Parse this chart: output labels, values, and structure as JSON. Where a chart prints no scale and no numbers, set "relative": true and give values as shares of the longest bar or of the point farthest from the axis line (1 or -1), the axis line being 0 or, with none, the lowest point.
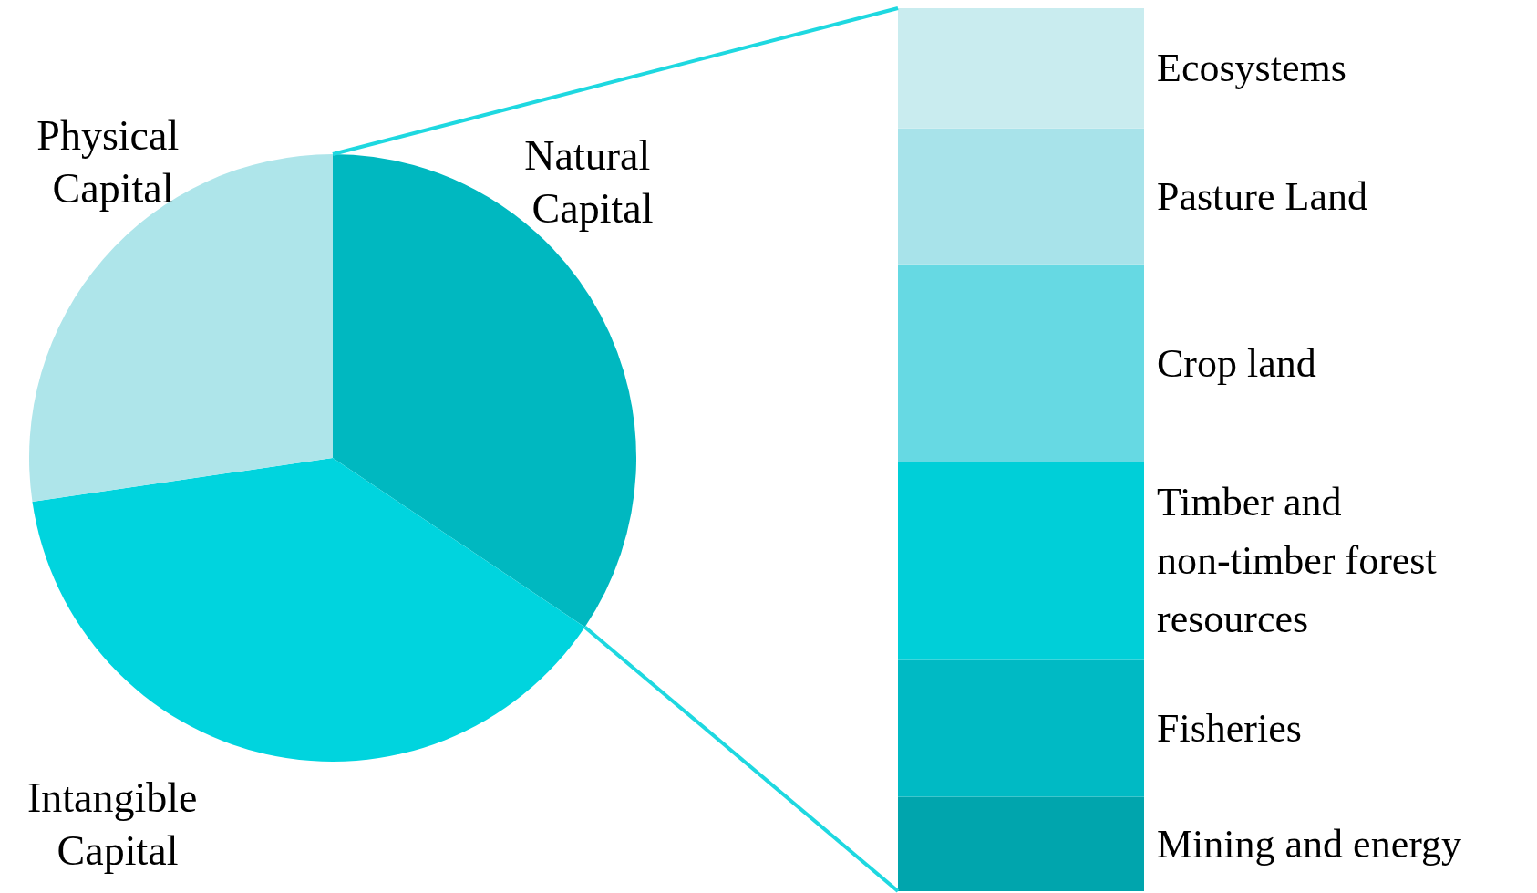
{
  "chart_data": [
    {
      "type": "pie",
      "categories": [
        "Natural Capital",
        "Intangible Capital",
        "Physical Capital"
      ],
      "values": [
        34.4,
        38.3,
        27.3
      ],
      "colors": [
        "#00b8c0",
        "#00d4de",
        "#aee5ea"
      ]
    },
    {
      "type": "bar",
      "stacked": true,
      "relative": true,
      "categories": [
        null
      ],
      "series": [
        {
          "name": "Mining and energy",
          "color": "#00a5ad",
          "values": [
            0.107
          ]
        },
        {
          "name": "Fisheries",
          "color": "#00bac4",
          "values": [
            0.155
          ]
        },
        {
          "name": "Timber and non-timber forest resources",
          "color": "#00cfd8",
          "values": [
            0.224
          ]
        },
        {
          "name": "Crop land",
          "color": "#66d9e3",
          "values": [
            0.224
          ]
        },
        {
          "name": "Pasture Land",
          "color": "#a8e3ea",
          "values": [
            0.154
          ]
        },
        {
          "name": "Ecosystems",
          "color": "#c9ecef",
          "values": [
            0.136
          ]
        }
      ]
    }
  ]
}
